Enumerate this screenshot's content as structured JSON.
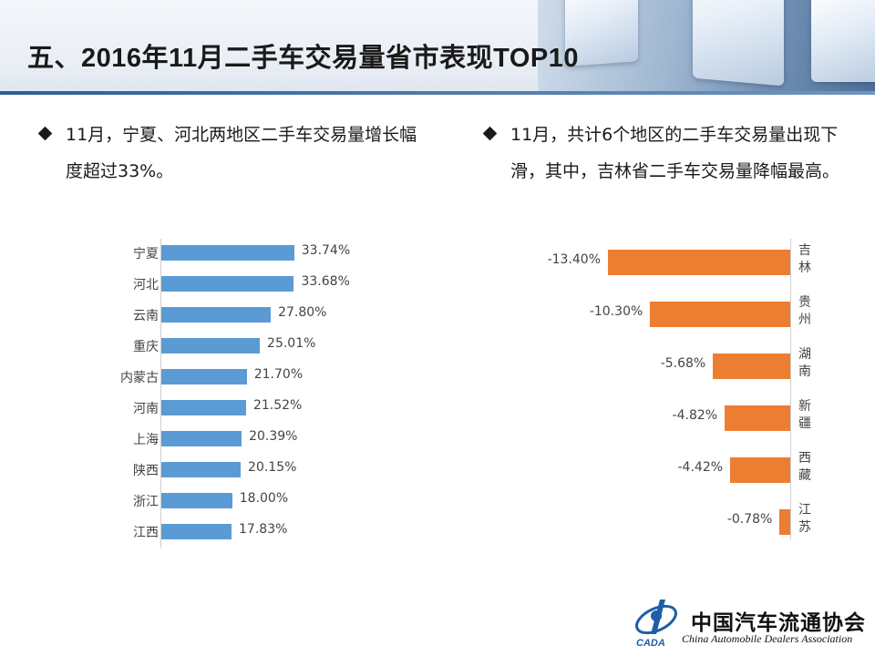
{
  "title": "五、2016年11月二手车交易量省市表现TOP10",
  "bullets": {
    "left": "11月，宁夏、河北两地区二手车交易量增长幅度超过33%。",
    "right": "11月，共计6个地区的二手车交易量出现下滑，其中，吉林省二手车交易量降幅最高。"
  },
  "colors": {
    "increase_bar": "#5b9bd5",
    "decrease_bar": "#ed7d31",
    "accent": "#2d5f93"
  },
  "chart_data": [
    {
      "type": "bar",
      "orientation": "horizontal",
      "title": "",
      "categories": [
        "宁夏",
        "河北",
        "云南",
        "重庆",
        "内蒙古",
        "河南",
        "上海",
        "陕西",
        "浙江",
        "江西"
      ],
      "values": [
        33.74,
        33.68,
        27.8,
        25.01,
        21.7,
        21.52,
        20.39,
        20.15,
        18.0,
        17.83
      ],
      "labels": [
        "33.74%",
        "33.68%",
        "27.80%",
        "25.01%",
        "21.70%",
        "21.52%",
        "20.39%",
        "20.15%",
        "18.00%",
        "17.83%"
      ],
      "unit": "%",
      "xlim": [
        0,
        40
      ]
    },
    {
      "type": "bar",
      "orientation": "horizontal",
      "title": "",
      "categories": [
        "吉林",
        "贵州",
        "湖南",
        "新疆",
        "西藏",
        "江苏"
      ],
      "values": [
        -13.4,
        -10.3,
        -5.68,
        -4.82,
        -4.42,
        -0.78
      ],
      "labels": [
        "-13.40%",
        "-10.30%",
        "-5.68%",
        "-4.82%",
        "-4.42%",
        "-0.78%"
      ],
      "unit": "%",
      "xlim": [
        -16,
        0
      ]
    }
  ],
  "footer": {
    "logo_text_cn": "中国汽车流通协会",
    "logo_text_en": "China Automobile Dealers Association",
    "logo_icon": "cada-logo-icon",
    "logo_mark_text": "CADA"
  }
}
